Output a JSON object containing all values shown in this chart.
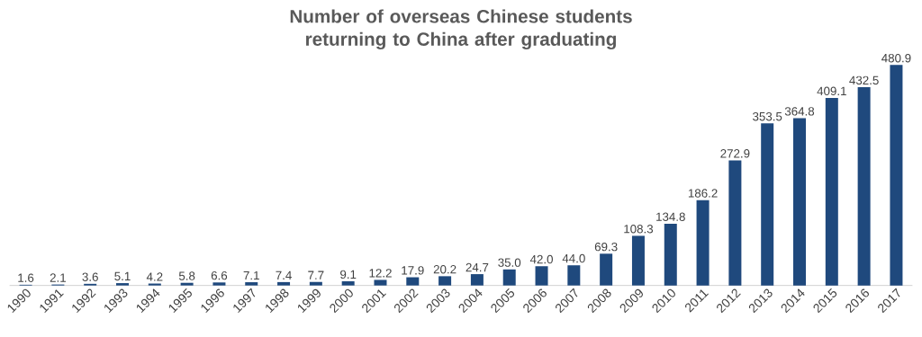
{
  "chart_data": {
    "type": "bar",
    "title": "Number of overseas Chinese students returning to China after graduating",
    "categories": [
      "1990",
      "1991",
      "1992",
      "1993",
      "1994",
      "1995",
      "1996",
      "1997",
      "1998",
      "1999",
      "2000",
      "2001",
      "2002",
      "2003",
      "2004",
      "2005",
      "2006",
      "2007",
      "2008",
      "2009",
      "2010",
      "2011",
      "2012",
      "2013",
      "2014",
      "2015",
      "2016",
      "2017"
    ],
    "values": [
      1.6,
      2.1,
      3.6,
      5.1,
      4.2,
      5.8,
      6.6,
      7.1,
      7.4,
      7.7,
      9.1,
      12.2,
      17.9,
      20.2,
      24.7,
      35.0,
      42.0,
      44.0,
      69.3,
      108.3,
      134.8,
      186.2,
      272.9,
      353.5,
      364.8,
      409.1,
      432.5,
      480.9
    ],
    "value_labels": [
      "1.6",
      "2.1",
      "3.6",
      "5.1",
      "4.2",
      "5.8",
      "6.6",
      "7.1",
      "7.4",
      "7.7",
      "9.1",
      "12.2",
      "17.9",
      "20.2",
      "24.7",
      "35.0",
      "42.0",
      "44.0",
      "69.3",
      "108.3",
      "134.8",
      "186.2",
      "272.9",
      "353.5",
      "364.8",
      "409.1",
      "432.5",
      "480.9"
    ],
    "color": "#1f497d"
  }
}
